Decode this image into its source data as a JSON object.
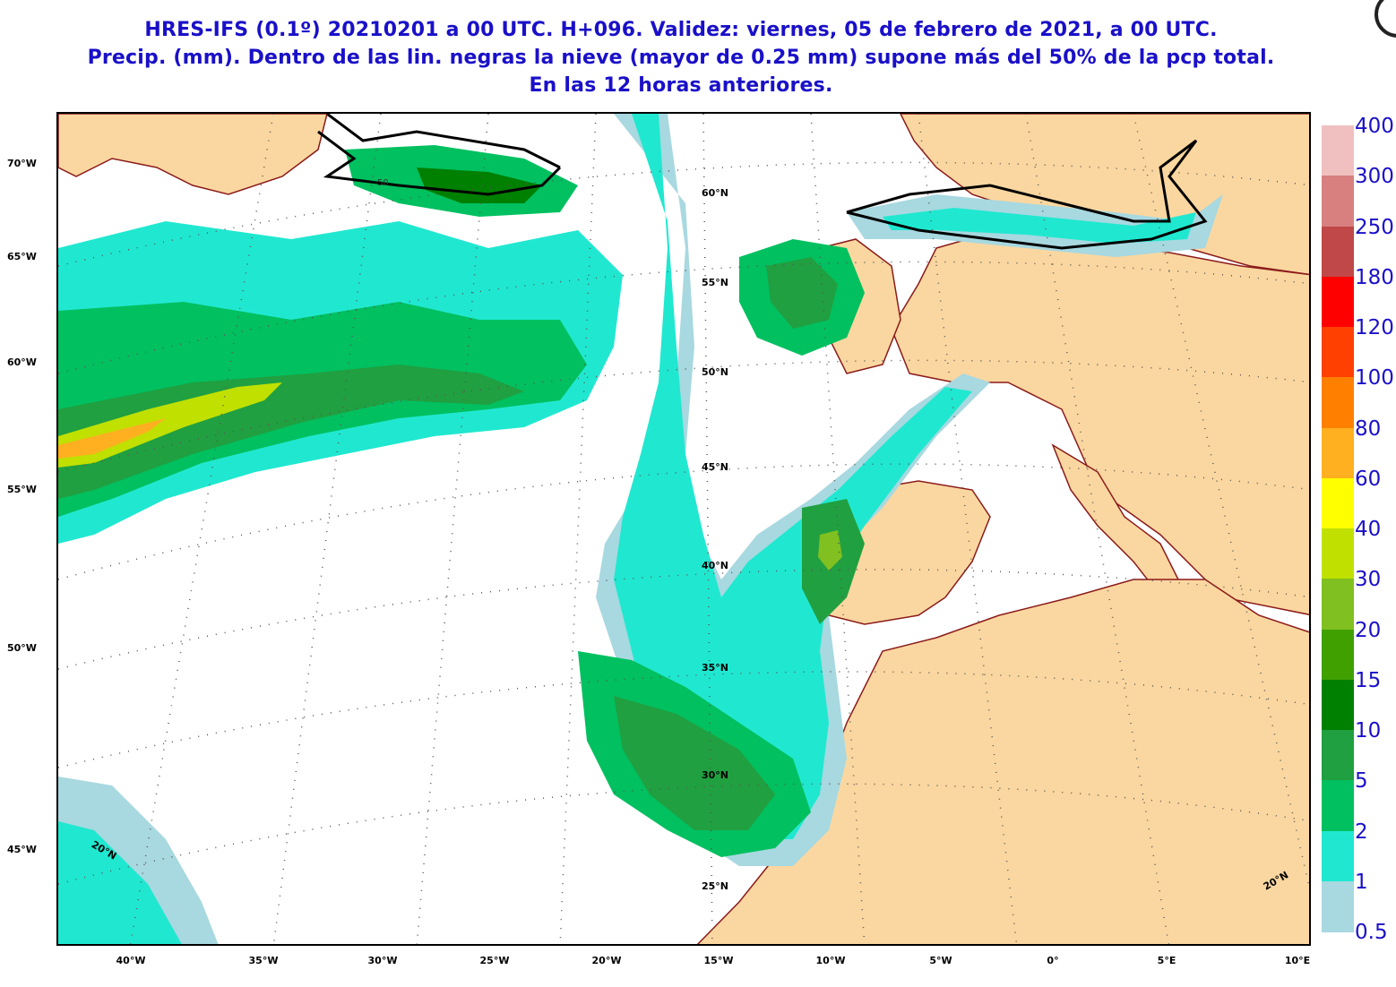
{
  "title": {
    "line1": "HRES-IFS (0.1º) 20210201 a 00 UTC.  H+096. Validez: viernes, 05 de febrero de 2021,  a  00 UTC.",
    "line2": "Precip. (mm). Dentro de las lin. negras la nieve (mayor de 0.25 mm) supone más del 50% de la pcp total.",
    "line3": "En las 12 horas anteriores."
  },
  "left_labels": [
    "70°W",
    "65°W",
    "60°W",
    "55°W",
    "50°W",
    "45°W"
  ],
  "bottom_labels": [
    "40°W",
    "35°W",
    "30°W",
    "25°W",
    "20°W",
    "15°W",
    "10°W",
    "5°W",
    "0°",
    "5°E",
    "10°E"
  ],
  "lat_labels": [
    "60°N",
    "55°N",
    "50°N",
    "45°N",
    "40°N",
    "35°N",
    "30°N",
    "25°N"
  ],
  "corner_labels": {
    "left": "20°N",
    "right": "20°N"
  },
  "contour_label": "50",
  "colorbar": {
    "labels": [
      "400",
      "300",
      "250",
      "180",
      "120",
      "100",
      "80",
      "60",
      "40",
      "30",
      "20",
      "15",
      "10",
      "5",
      "2",
      "1",
      "0.5"
    ],
    "colors": [
      "#f0c0c0",
      "#d88080",
      "#c04848",
      "#ff0000",
      "#ff4000",
      "#ff8000",
      "#ffb020",
      "#ffff00",
      "#c0e000",
      "#80c020",
      "#40a000",
      "#008000",
      "#20a040",
      "#00c060",
      "#20e8d0",
      "#a8d8e0"
    ]
  },
  "colors": {
    "land": "#fad7a0",
    "coast": "#8b1a1a",
    "snow_line": "#000000",
    "title": "#1a10c8"
  }
}
